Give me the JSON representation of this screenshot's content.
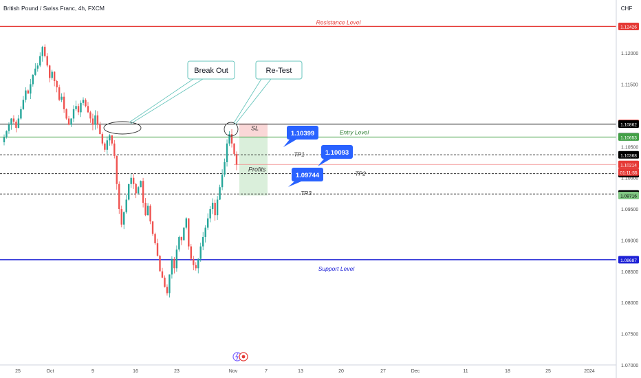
{
  "header": {
    "symbol_title": "British Pound / Swiss Franc, 4h, FXCM"
  },
  "price_axis": {
    "currency": "CHF"
  },
  "chart_data": {
    "type": "candlestick",
    "title": "British Pound / Swiss Franc, 4h, FXCM",
    "y_axis": {
      "min": 1.07,
      "max": 1.1285,
      "ticks": [
        "1.12000",
        "1.11500",
        "1.10500",
        "1.10000",
        "1.09500",
        "1.09000",
        "1.08500",
        "1.08000",
        "1.07500",
        "1.07000"
      ]
    },
    "x_axis": {
      "ticks": [
        "25",
        "Oct",
        "9",
        "16",
        "23",
        "Nov",
        "7",
        "13",
        "20",
        "27",
        "Dec",
        "11",
        "18",
        "25",
        "2024"
      ]
    },
    "lines": [
      {
        "name": "resistance",
        "label": "Resistance Level",
        "price": 1.12426,
        "color": "#e53935",
        "style": "solid"
      },
      {
        "name": "entry",
        "label": "Entry Level",
        "price": 1.10653,
        "color": "#43a047",
        "style": "solid"
      },
      {
        "name": "black-level",
        "label": "",
        "price": 1.10862,
        "color": "#000000",
        "style": "solid"
      },
      {
        "name": "tp1",
        "label": "TP1",
        "price": 1.10368,
        "color": "#333333",
        "style": "dashed"
      },
      {
        "name": "tp2",
        "label": "TP2",
        "price": 1.10067,
        "color": "#333333",
        "style": "dashed"
      },
      {
        "name": "tp3",
        "label": "TP3",
        "price": 1.09741,
        "color": "#333333",
        "style": "dashed"
      },
      {
        "name": "support",
        "label": "Support Level",
        "price": 1.08687,
        "color": "#1e22d6",
        "style": "solid"
      },
      {
        "name": "current",
        "label": "",
        "price": 1.10214,
        "color": "#f28b8b",
        "style": "solid"
      }
    ],
    "price_labels": [
      {
        "price": 1.12426,
        "text": "1.12426",
        "bg": "#e53935",
        "fg": "#ffffff"
      },
      {
        "price": 1.10871,
        "text": "1.10871",
        "bg": "#e53935",
        "fg": "#ffffff"
      },
      {
        "price": 1.10862,
        "text": "1.10862",
        "bg": "#000000",
        "fg": "#ffffff"
      },
      {
        "price": 1.1066,
        "text": "1.10660",
        "bg": "#787b86",
        "fg": "#ffffff"
      },
      {
        "price": 1.10653,
        "text": "1.10653",
        "bg": "#43a047",
        "fg": "#ffffff"
      },
      {
        "price": 1.10368,
        "text": "1.10368",
        "bg": "#000000",
        "fg": "#ffffff"
      },
      {
        "price": 1.10214,
        "text": "1.10214",
        "bg": "#e53935",
        "fg": "#ffffff"
      },
      {
        "price": 1.10067,
        "text": "1.10067",
        "bg": "#000000",
        "fg": "#ffffff"
      },
      {
        "price": 1.09741,
        "text": "1.09741",
        "bg": "#000000",
        "fg": "#ffffff"
      },
      {
        "price": 1.09716,
        "text": "1.09716",
        "bg": "#81c784",
        "fg": "#000000"
      },
      {
        "price": 1.08687,
        "text": "1.08687",
        "bg": "#1e22d6",
        "fg": "#ffffff"
      }
    ],
    "countdown": "01:11:55",
    "annotations": {
      "break_out": "Break Out",
      "re_test": "Re-Test",
      "sl": "SL",
      "profits": "Profits",
      "callouts": [
        {
          "text": "1.10399",
          "price": 1.10399
        },
        {
          "text": "1.10093",
          "price": 1.10093
        },
        {
          "text": "1.09744",
          "price": 1.09744
        }
      ]
    },
    "trade_box": {
      "stop_loss": 1.10871,
      "entry": 1.10653,
      "target": 1.09716
    },
    "candles_close_path": [
      1.1065,
      1.1075,
      1.1085,
      1.1095,
      1.109,
      1.108,
      1.1095,
      1.111,
      1.1125,
      1.114,
      1.1135,
      1.115,
      1.1165,
      1.1175,
      1.118,
      1.1195,
      1.121,
      1.1195,
      1.118,
      1.116,
      1.117,
      1.1155,
      1.1145,
      1.1125,
      1.113,
      1.111,
      1.1095,
      1.1085,
      1.1095,
      1.111,
      1.1115,
      1.1105,
      1.112,
      1.1125,
      1.1115,
      1.1105,
      1.1095,
      1.1085,
      1.11,
      1.1085,
      1.107,
      1.1055,
      1.1045,
      1.106,
      1.1068,
      1.1055,
      1.1035,
      1.099,
      1.095,
      1.0925,
      1.0945,
      1.0965,
      1.099,
      1.1,
      1.099,
      1.0975,
      1.0985,
      1.0995,
      1.096,
      1.094,
      1.0955,
      1.093,
      1.091,
      1.0895,
      1.0875,
      1.085,
      1.084,
      1.0825,
      1.0815,
      1.0845,
      1.087,
      1.0855,
      1.0885,
      1.0905,
      1.09,
      1.092,
      1.0935,
      1.089,
      1.087,
      1.086,
      1.0855,
      1.087,
      1.089,
      1.0905,
      1.092,
      1.0935,
      1.095,
      1.096,
      1.094,
      1.0965,
      1.0985,
      1.1005,
      1.1025,
      1.1055,
      1.107,
      1.1055,
      1.1038,
      1.1021
    ]
  }
}
